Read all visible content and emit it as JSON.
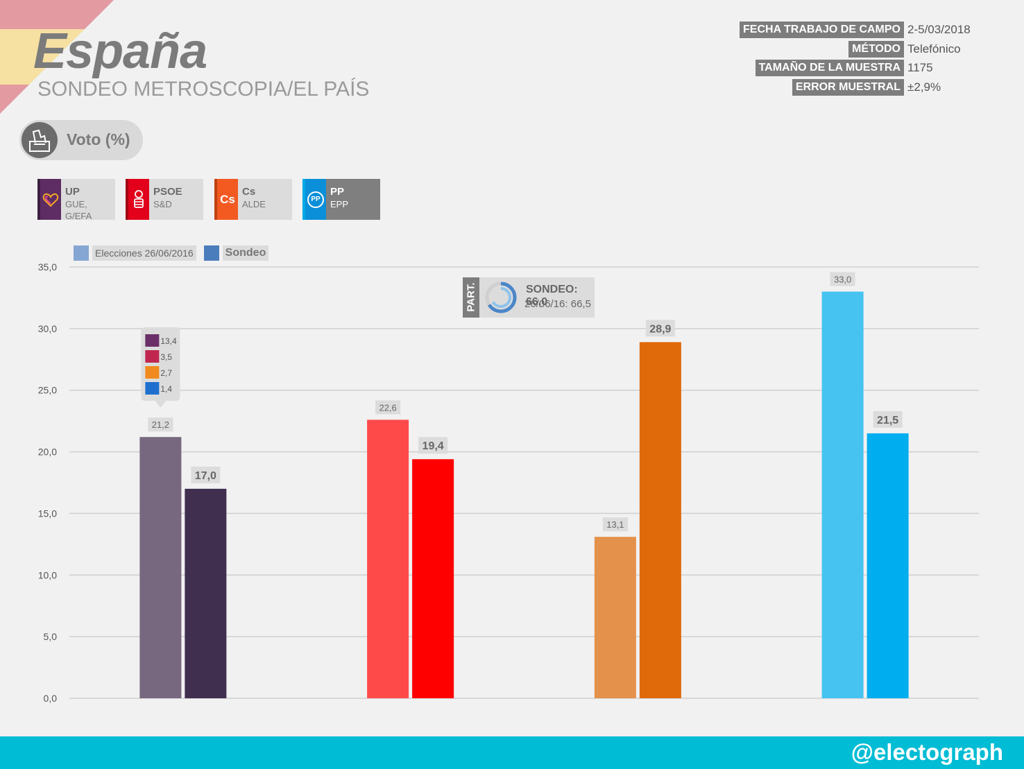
{
  "header": {
    "title": "España",
    "subtitle": "SONDEO METROSCOPIA/EL PAÍS"
  },
  "meta": [
    {
      "label": "FECHA TRABAJO DE CAMPO",
      "value": "2-5/03/2018"
    },
    {
      "label": "MÉTODO",
      "value": "Telefónico"
    },
    {
      "label": "TAMAÑO DE LA MUESTRA",
      "value": "1175"
    },
    {
      "label": "ERROR MUESTRAL",
      "value": "±2,9%"
    }
  ],
  "vote_label": "Voto (%)",
  "parties": [
    {
      "name": "UP",
      "group": "GUE, G/EFA",
      "color": "#5e2d63",
      "logo_text": "",
      "icon": "heart-icon"
    },
    {
      "name": "PSOE",
      "group": "S&D",
      "color": "#e2001a",
      "logo_text": "",
      "icon": "rose-fist-icon"
    },
    {
      "name": "Cs",
      "group": "ALDE",
      "color": "#f25a22",
      "logo_text": "Cs",
      "icon": "cs-logo-icon"
    },
    {
      "name": "PP",
      "group": "EPP",
      "color": "#0a8fd8",
      "logo_text": "PP",
      "icon": "pp-logo-icon"
    }
  ],
  "legend": [
    {
      "label": "Elecciones 26/06/2016",
      "color": "#85a6d3"
    },
    {
      "label": "Sondeo",
      "color": "#4b7dbd"
    }
  ],
  "participation": {
    "tab": "PART.",
    "sondeo": "SONDEO: 66,0",
    "prev": "26/06/16: 66,5",
    "sondeo_value": 66.0,
    "prev_value": 66.5
  },
  "tooltip": [
    {
      "value": "13,4",
      "icon": "podemos-logo-icon",
      "color": "#6a2e68"
    },
    {
      "value": "3,5",
      "icon": "en-comu-logo-icon",
      "color": "#c0264f"
    },
    {
      "value": "2,7",
      "icon": "compromis-logo-icon",
      "color": "#f08a1e"
    },
    {
      "value": "1,4",
      "icon": "en-marea-logo-icon",
      "color": "#1f6fcf"
    }
  ],
  "chart_data": {
    "type": "bar",
    "categories": [
      "UP",
      "PSOE",
      "Cs",
      "PP"
    ],
    "series": [
      {
        "name": "Elecciones 26/06/2016",
        "values": [
          21.2,
          22.6,
          13.1,
          33.0
        ],
        "labels": [
          "21,2",
          "22,6",
          "13,1",
          "33,0"
        ],
        "colors": [
          "#77687f",
          "#ff4a4a",
          "#e4914b",
          "#46c3f1"
        ]
      },
      {
        "name": "Sondeo",
        "values": [
          17.0,
          19.4,
          28.9,
          21.5
        ],
        "labels": [
          "17,0",
          "19,4",
          "28,9",
          "21,5"
        ],
        "colors": [
          "#402f4f",
          "#ff0000",
          "#e0690a",
          "#00aeef"
        ]
      }
    ],
    "ylim": [
      0,
      35
    ],
    "yticks": [
      0,
      5,
      10,
      15,
      20,
      25,
      30,
      35
    ],
    "ytick_labels": [
      "0,0",
      "5,0",
      "10,0",
      "15,0",
      "20,0",
      "25,0",
      "30,0",
      "35,0"
    ],
    "grid": true,
    "legend_position": "top-left"
  },
  "footer": {
    "handle": "@electograph"
  }
}
